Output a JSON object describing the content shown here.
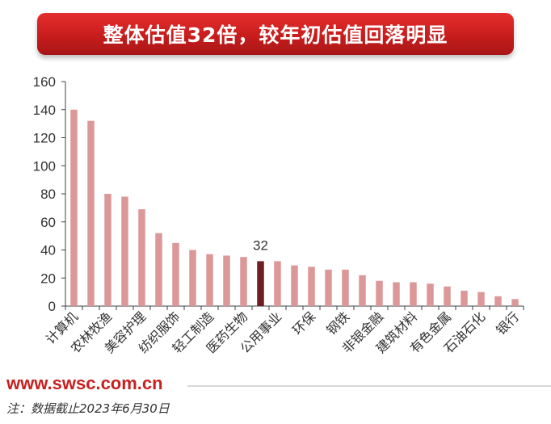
{
  "title": "整体估值32倍，较年初估值回落明显",
  "footer": {
    "url": "www.swsc.com.cn",
    "note": "注：数据截止2023年6月30日"
  },
  "colors": {
    "bar": "#dc9898",
    "highlight_bar": "#6e1f22",
    "banner": "#c81d1d",
    "axis": "#404040"
  },
  "chart_data": {
    "type": "bar",
    "categories": [
      "计算机",
      "",
      "农林牧渔",
      "",
      "美容护理",
      "",
      "纺织服饰",
      "",
      "轻工制造",
      "",
      "医药生物",
      "",
      "公用事业",
      "",
      "环保",
      "",
      "钢铁",
      "",
      "非银金融",
      "",
      "建筑材料",
      "",
      "有色金属",
      "",
      "石油石化",
      "",
      "银行"
    ],
    "values": [
      140,
      132,
      80,
      78,
      69,
      52,
      45,
      40,
      37,
      36,
      35,
      32,
      32,
      29,
      28,
      26,
      26,
      22,
      18,
      17,
      17,
      16,
      14,
      11,
      10,
      7,
      5
    ],
    "highlight_index": 11,
    "annotations": [
      {
        "index": 11,
        "text": "32"
      }
    ],
    "ylim": [
      0,
      160
    ],
    "yticks": [
      0,
      20,
      40,
      60,
      80,
      100,
      120,
      140,
      160
    ],
    "grid": false,
    "legend": "none"
  }
}
